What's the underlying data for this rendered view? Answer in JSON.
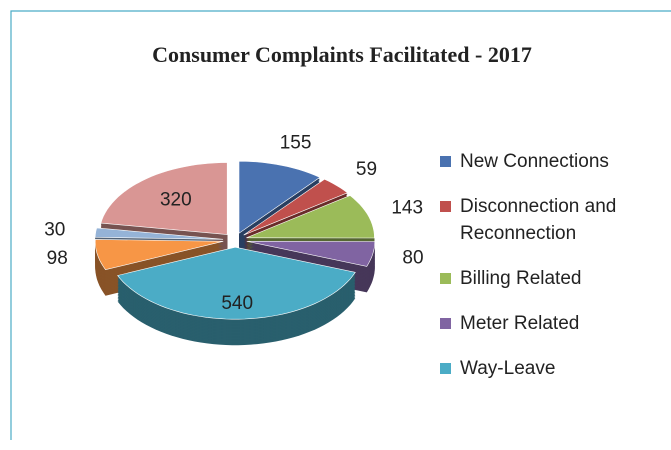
{
  "chart_data": {
    "type": "pie",
    "title": "Consumer Complaints Facilitated - 2017",
    "categories": [
      "New Connections",
      "Disconnection and Reconnection",
      "Billing Related",
      "Meter Related",
      "Way-Leave",
      null,
      null,
      null
    ],
    "values": [
      155,
      59,
      143,
      80,
      540,
      98,
      30,
      320
    ],
    "colors": [
      "#4a72b0",
      "#c0504d",
      "#9bbb59",
      "#8064a2",
      "#4bacc6",
      "#f79646",
      "#95b3d7",
      "#d99694"
    ],
    "legend": "right"
  }
}
